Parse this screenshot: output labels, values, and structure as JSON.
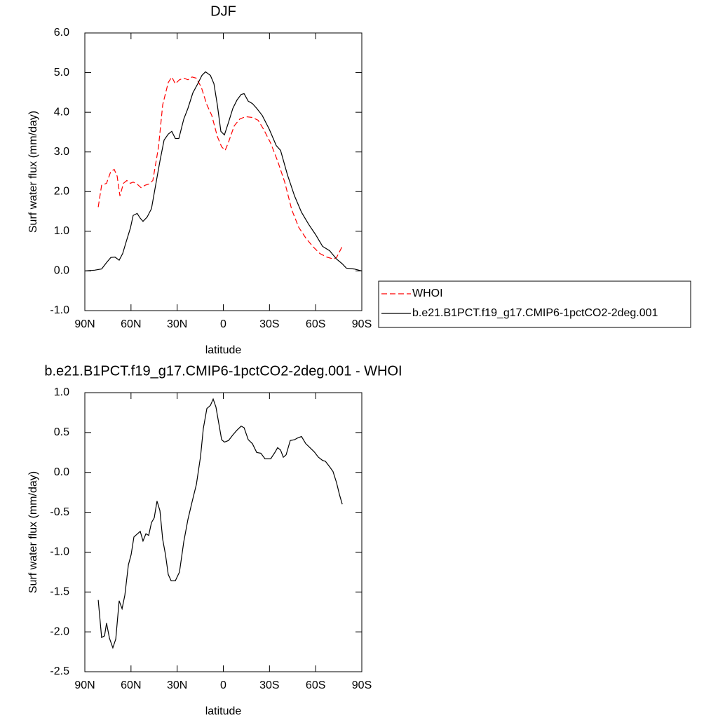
{
  "chart_data": [
    {
      "type": "line",
      "title": "DJF",
      "x_label": "latitude",
      "y_label": "Surf water flux (mm/day)",
      "xlim": [
        90,
        -90
      ],
      "ylim": [
        -1,
        6
      ],
      "xticks": [
        {
          "value": 90,
          "label": "90N"
        },
        {
          "value": 60,
          "label": "60N"
        },
        {
          "value": 30,
          "label": "30N"
        },
        0,
        {
          "value": -30,
          "label": "30S"
        },
        {
          "value": -60,
          "label": "60S"
        },
        {
          "value": -90,
          "label": "90S"
        }
      ],
      "yticks": [
        {
          "value": -1,
          "label": "-1.0"
        },
        {
          "value": 0,
          "label": "0.0"
        },
        {
          "value": 1,
          "label": "1.0"
        },
        {
          "value": 2,
          "label": "2.0"
        },
        {
          "value": 3,
          "label": "3.0"
        },
        {
          "value": 4,
          "label": "4.0"
        },
        {
          "value": 5,
          "label": "5.0"
        },
        {
          "value": 6,
          "label": "6.0"
        }
      ],
      "legend": "right",
      "series": [
        {
          "name": "WHOI",
          "color": "#ff0000",
          "line_style": "dashed",
          "x": [
            81.3,
            79.1,
            75.9,
            73.1,
            70.9,
            69.0,
            67.2,
            64.9,
            62.7,
            60.4,
            58.6,
            56.0,
            53.5,
            50.8,
            48.5,
            45.8,
            42.1,
            39.4,
            35.8,
            33.5,
            31.2,
            28.5,
            25.7,
            23.0,
            20.3,
            17.5,
            14.3,
            10.7,
            7.5,
            3.9,
            1.1,
            -1.2,
            -3.4,
            -7.1,
            -10.7,
            -14.4,
            -18.9,
            -22.6,
            -26.2,
            -30.8,
            -35.3,
            -39.9,
            -44.5,
            -49.0,
            -53.6,
            -58.1,
            -62.7,
            -67.2,
            -71.8,
            -73.6,
            -77.3
          ],
          "values": [
            1.61,
            2.16,
            2.21,
            2.51,
            2.56,
            2.39,
            1.89,
            2.21,
            2.28,
            2.21,
            2.24,
            2.19,
            2.1,
            2.16,
            2.19,
            2.28,
            3.13,
            4.19,
            4.75,
            4.89,
            4.72,
            4.82,
            4.86,
            4.82,
            4.89,
            4.86,
            4.63,
            4.19,
            3.92,
            3.39,
            3.13,
            3.04,
            3.25,
            3.66,
            3.83,
            3.89,
            3.87,
            3.8,
            3.57,
            3.22,
            2.77,
            2.24,
            1.54,
            1.1,
            0.83,
            0.62,
            0.44,
            0.35,
            0.3,
            0.34,
            0.62
          ]
        },
        {
          "name": "b.e21.B1PCT.f19_g17.CMIP6-1pctCO2-2deg.001",
          "color": "#000000",
          "line_style": "solid",
          "x": [
            90,
            83.6,
            79.1,
            75.9,
            73.1,
            70.4,
            67.7,
            65.4,
            63.1,
            60.4,
            58.6,
            56.0,
            54.0,
            52.2,
            49.5,
            46.7,
            44.0,
            41.2,
            38.5,
            35.8,
            33.5,
            31.2,
            28.9,
            25.7,
            23.0,
            19.8,
            16.6,
            13.9,
            11.6,
            8.4,
            6.1,
            3.9,
            1.6,
            -0.7,
            -3.4,
            -6.2,
            -8.9,
            -11.6,
            -13.5,
            -16.2,
            -18.9,
            -21.7,
            -25.3,
            -29.9,
            -34.4,
            -37.2,
            -41.7,
            -46.3,
            -50.8,
            -55.4,
            -59.9,
            -64.5,
            -69.1,
            -73.6,
            -77.3,
            -80.0,
            -85.0,
            -90
          ],
          "values": [
            0.0,
            0.02,
            0.05,
            0.21,
            0.34,
            0.35,
            0.27,
            0.44,
            0.74,
            1.08,
            1.4,
            1.45,
            1.33,
            1.25,
            1.36,
            1.57,
            2.16,
            2.77,
            3.3,
            3.45,
            3.52,
            3.34,
            3.34,
            3.83,
            4.1,
            4.49,
            4.72,
            4.93,
            5.02,
            4.93,
            4.72,
            4.19,
            3.52,
            3.43,
            3.75,
            4.1,
            4.31,
            4.45,
            4.47,
            4.28,
            4.22,
            4.1,
            3.92,
            3.57,
            3.16,
            3.04,
            2.42,
            1.89,
            1.48,
            1.18,
            0.92,
            0.62,
            0.51,
            0.3,
            0.18,
            0.07,
            0.05,
            0.0
          ]
        }
      ]
    },
    {
      "type": "line",
      "title": "b.e21.B1PCT.f19_g17.CMIP6-1pctCO2-2deg.001 - WHOI",
      "x_label": "latitude",
      "y_label": "Surf water flux (mm/day)",
      "xlim": [
        90,
        -90
      ],
      "ylim": [
        -2.5,
        1
      ],
      "xticks": [
        {
          "value": 90,
          "label": "90N"
        },
        {
          "value": 60,
          "label": "60N"
        },
        {
          "value": 30,
          "label": "30N"
        },
        0,
        {
          "value": -30,
          "label": "30S"
        },
        {
          "value": -60,
          "label": "60S"
        },
        {
          "value": -90,
          "label": "90S"
        }
      ],
      "yticks": [
        {
          "value": -2.5,
          "label": "-2.5"
        },
        {
          "value": -2,
          "label": "-2.0"
        },
        {
          "value": -1.5,
          "label": "-1.5"
        },
        {
          "value": -1,
          "label": "-1.0"
        },
        {
          "value": -0.5,
          "label": "-0.5"
        },
        {
          "value": 0,
          "label": "0.0"
        },
        {
          "value": 0.5,
          "label": "0.5"
        },
        {
          "value": 1,
          "label": "1.0"
        }
      ],
      "color": "#000000",
      "x": [
        81.3,
        79.1,
        77.2,
        75.9,
        74.0,
        71.8,
        69.9,
        67.7,
        65.8,
        64.0,
        61.7,
        59.9,
        58.1,
        55.8,
        54.0,
        52.2,
        50.3,
        48.5,
        46.7,
        44.9,
        43.1,
        41.2,
        39.4,
        37.6,
        35.8,
        33.9,
        31.2,
        28.5,
        25.7,
        23.0,
        20.3,
        17.5,
        14.8,
        13.0,
        10.7,
        8.4,
        6.6,
        4.8,
        2.9,
        1.1,
        -0.7,
        -3.4,
        -6.2,
        -8.9,
        -11.6,
        -13.5,
        -16.2,
        -18.9,
        -21.7,
        -24.4,
        -27.1,
        -30.8,
        -33.5,
        -35.3,
        -37.2,
        -39.0,
        -40.8,
        -43.5,
        -46.3,
        -48.1,
        -50.8,
        -53.6,
        -56.3,
        -59.0,
        -61.8,
        -64.5,
        -66.3,
        -69.1,
        -71.3,
        -73.6,
        -75.5,
        -77.3
      ],
      "values": [
        -1.6,
        -2.07,
        -2.05,
        -1.89,
        -2.08,
        -2.2,
        -2.09,
        -1.61,
        -1.71,
        -1.54,
        -1.16,
        -1.03,
        -0.81,
        -0.77,
        -0.74,
        -0.86,
        -0.77,
        -0.79,
        -0.63,
        -0.57,
        -0.36,
        -0.48,
        -0.84,
        -1.03,
        -1.28,
        -1.36,
        -1.36,
        -1.25,
        -0.87,
        -0.59,
        -0.37,
        -0.15,
        0.2,
        0.55,
        0.8,
        0.84,
        0.92,
        0.82,
        0.61,
        0.41,
        0.38,
        0.4,
        0.47,
        0.53,
        0.58,
        0.56,
        0.41,
        0.36,
        0.25,
        0.24,
        0.17,
        0.17,
        0.25,
        0.31,
        0.28,
        0.19,
        0.22,
        0.4,
        0.41,
        0.43,
        0.45,
        0.36,
        0.31,
        0.26,
        0.19,
        0.15,
        0.14,
        0.07,
        0.01,
        -0.13,
        -0.28,
        -0.4
      ]
    }
  ]
}
